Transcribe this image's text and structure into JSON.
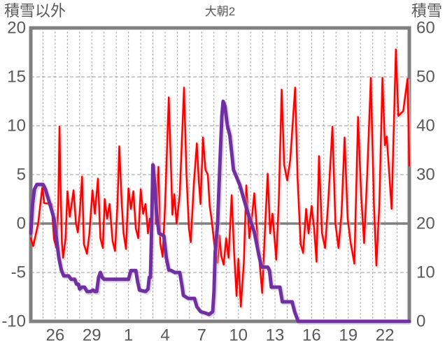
{
  "header": {
    "left_axis_title": "積雪以外",
    "chart_title": "大朝2",
    "right_axis_title": "積雪"
  },
  "chart_data": {
    "type": "line",
    "title": "大朝2",
    "left_axis": {
      "title": "積雪以外",
      "ticks": [
        20,
        15,
        10,
        5,
        0,
        -5,
        -10
      ],
      "range": [
        -10,
        20
      ]
    },
    "right_axis": {
      "title": "積雪",
      "ticks": [
        60,
        50,
        40,
        30,
        20,
        10,
        0
      ],
      "range": [
        0,
        60
      ]
    },
    "x_axis": {
      "tick_labels": [
        "26",
        "29",
        "1",
        "4",
        "7",
        "10",
        "13",
        "16",
        "19",
        "22"
      ],
      "tick_positions_days": [
        2,
        5,
        8,
        11,
        14,
        17,
        20,
        23,
        26,
        29
      ],
      "range_days": [
        0,
        31
      ],
      "gridline_every_day": true
    },
    "zero_line_left_value": 0,
    "grid": true,
    "legend": "none",
    "colors": {
      "temperature_line": "#FF0000",
      "temperature_shadow": "#ffb0b0",
      "snow_line": "#7030A0",
      "snow_shadow": "#c9aee0",
      "frame": "#808080",
      "gridline": "#9e9e9e",
      "text": "#595959",
      "background": "#ffffff"
    },
    "series": [
      {
        "name": "積雪以外",
        "axis": "left",
        "color": "#FF0000",
        "width": 2.5,
        "points": [
          [
            0.0,
            -1.5
          ],
          [
            0.2,
            -2.3
          ],
          [
            0.6,
            0.0
          ],
          [
            0.95,
            3.8
          ],
          [
            1.1,
            2.1
          ],
          [
            1.7,
            2.0
          ],
          [
            1.9,
            -1.6
          ],
          [
            2.1,
            -2.5
          ],
          [
            2.25,
            2.0
          ],
          [
            2.35,
            9.9
          ],
          [
            2.45,
            3.0
          ],
          [
            2.55,
            -2.0
          ],
          [
            2.65,
            -3.5
          ],
          [
            2.85,
            -1.5
          ],
          [
            3.0,
            3.3
          ],
          [
            3.2,
            0.7
          ],
          [
            3.5,
            3.4
          ],
          [
            3.7,
            0.0
          ],
          [
            3.85,
            -0.9
          ],
          [
            4.0,
            1.0
          ],
          [
            4.2,
            4.8
          ],
          [
            4.35,
            -2.1
          ],
          [
            4.6,
            -3.1
          ],
          [
            4.8,
            -1.0
          ],
          [
            5.05,
            3.4
          ],
          [
            5.25,
            1.0
          ],
          [
            5.5,
            4.6
          ],
          [
            5.7,
            -1.5
          ],
          [
            5.9,
            -2.5
          ],
          [
            6.05,
            2.5
          ],
          [
            6.25,
            0.5
          ],
          [
            6.45,
            2.0
          ],
          [
            6.7,
            -1.8
          ],
          [
            6.9,
            -2.8
          ],
          [
            7.1,
            2.0
          ],
          [
            7.25,
            7.9
          ],
          [
            7.45,
            2.0
          ],
          [
            7.6,
            -1.0
          ],
          [
            7.8,
            -2.6
          ],
          [
            8.0,
            3.6
          ],
          [
            8.2,
            1.5
          ],
          [
            8.4,
            3.3
          ],
          [
            8.6,
            -0.5
          ],
          [
            8.8,
            -1.5
          ],
          [
            9.0,
            3.5
          ],
          [
            9.2,
            1.0
          ],
          [
            9.4,
            2.0
          ],
          [
            9.6,
            -1.0
          ],
          [
            9.75,
            0.5
          ],
          [
            9.9,
            -0.5
          ],
          [
            10.1,
            5.9
          ],
          [
            10.25,
            0.0
          ],
          [
            10.45,
            5.8
          ],
          [
            10.6,
            -2.0
          ],
          [
            10.8,
            -3.4
          ],
          [
            11.0,
            2.0
          ],
          [
            11.3,
            12.9
          ],
          [
            11.5,
            5.0
          ],
          [
            11.6,
            0.9
          ],
          [
            11.75,
            3.0
          ],
          [
            11.95,
            0.0
          ],
          [
            12.2,
            3.0
          ],
          [
            12.55,
            13.9
          ],
          [
            12.75,
            5.0
          ],
          [
            12.95,
            -0.5
          ],
          [
            13.1,
            -1.9
          ],
          [
            13.35,
            4.0
          ],
          [
            13.6,
            8.2
          ],
          [
            13.75,
            4.5
          ],
          [
            13.9,
            2.0
          ],
          [
            14.1,
            8.8
          ],
          [
            14.3,
            5.5
          ],
          [
            14.5,
            5.0
          ],
          [
            14.65,
            1.8
          ],
          [
            14.8,
            0.5
          ],
          [
            14.95,
            -1.2
          ],
          [
            15.1,
            -2.9
          ],
          [
            15.3,
            -4.0
          ],
          [
            15.45,
            -1.2
          ],
          [
            15.6,
            -3.3
          ],
          [
            15.8,
            -4.2
          ],
          [
            16.0,
            -1.5
          ],
          [
            16.2,
            -3.5
          ],
          [
            16.45,
            2.9
          ],
          [
            16.65,
            -3.0
          ],
          [
            16.85,
            -7.4
          ],
          [
            17.0,
            -3.6
          ],
          [
            17.2,
            -8.5
          ],
          [
            17.45,
            -4.0
          ],
          [
            17.65,
            3.9
          ],
          [
            17.9,
            -1.5
          ],
          [
            18.1,
            0.5
          ],
          [
            18.3,
            3.1
          ],
          [
            18.6,
            -2.0
          ],
          [
            18.95,
            -7.1
          ],
          [
            19.2,
            0.0
          ],
          [
            19.4,
            5.1
          ],
          [
            19.6,
            -1.0
          ],
          [
            19.8,
            1.0
          ],
          [
            20.1,
            -3.7
          ],
          [
            20.3,
            2.0
          ],
          [
            20.55,
            13.7
          ],
          [
            20.75,
            6.0
          ],
          [
            21.0,
            4.4
          ],
          [
            21.25,
            6.5
          ],
          [
            21.65,
            13.9
          ],
          [
            21.85,
            4.6
          ],
          [
            22.1,
            -2.1
          ],
          [
            22.3,
            -3.0
          ],
          [
            22.55,
            1.5
          ],
          [
            22.75,
            -1.0
          ],
          [
            23.0,
            1.8
          ],
          [
            23.2,
            -0.5
          ],
          [
            23.4,
            -3.9
          ],
          [
            23.6,
            6.9
          ],
          [
            23.85,
            -1.0
          ],
          [
            24.1,
            -2.5
          ],
          [
            24.35,
            2.0
          ],
          [
            24.7,
            9.9
          ],
          [
            24.95,
            0.0
          ],
          [
            25.2,
            -2.5
          ],
          [
            25.45,
            1.0
          ],
          [
            25.7,
            8.8
          ],
          [
            25.95,
            0.5
          ],
          [
            26.2,
            -2.0
          ],
          [
            26.5,
            -4.1
          ],
          [
            26.8,
            10.9
          ],
          [
            27.05,
            3.0
          ],
          [
            27.3,
            -2.0
          ],
          [
            27.55,
            5.0
          ],
          [
            27.85,
            14.9
          ],
          [
            28.1,
            2.0
          ],
          [
            28.3,
            -4.3
          ],
          [
            28.55,
            2.0
          ],
          [
            28.8,
            14.9
          ],
          [
            29.0,
            8.0
          ],
          [
            29.15,
            8.9
          ],
          [
            29.55,
            1.5
          ],
          [
            29.9,
            17.8
          ],
          [
            30.1,
            11.0
          ],
          [
            30.5,
            11.5
          ],
          [
            30.85,
            14.8
          ],
          [
            31.0,
            5.9
          ]
        ]
      },
      {
        "name": "積雪",
        "axis": "right",
        "color": "#7030A0",
        "width": 5,
        "points": [
          [
            0.0,
            18
          ],
          [
            0.15,
            24
          ],
          [
            0.3,
            27
          ],
          [
            0.5,
            28
          ],
          [
            1.0,
            28
          ],
          [
            1.2,
            27
          ],
          [
            1.5,
            24.5
          ],
          [
            1.9,
            21
          ],
          [
            2.1,
            17
          ],
          [
            2.3,
            13
          ],
          [
            2.5,
            10.5
          ],
          [
            2.7,
            9.3
          ],
          [
            3.1,
            9.3
          ],
          [
            3.3,
            8.6
          ],
          [
            3.6,
            8.6
          ],
          [
            3.75,
            7.6
          ],
          [
            3.9,
            7.6
          ],
          [
            4.0,
            6.6
          ],
          [
            4.2,
            7.0
          ],
          [
            4.4,
            7.0
          ],
          [
            4.6,
            6.1
          ],
          [
            4.9,
            6.1
          ],
          [
            5.1,
            6.4
          ],
          [
            5.25,
            6.1
          ],
          [
            5.4,
            6.1
          ],
          [
            5.55,
            9.0
          ],
          [
            5.7,
            10.0
          ],
          [
            5.85,
            9.0
          ],
          [
            6.0,
            8.6
          ],
          [
            7.0,
            8.6
          ],
          [
            8.0,
            8.6
          ],
          [
            8.2,
            10.4
          ],
          [
            8.6,
            10.4
          ],
          [
            8.75,
            8.1
          ],
          [
            8.9,
            6.4
          ],
          [
            9.4,
            6.1
          ],
          [
            9.6,
            6.6
          ],
          [
            9.7,
            9.0
          ],
          [
            9.8,
            9.0
          ],
          [
            9.85,
            14.0
          ],
          [
            10.0,
            32.0
          ],
          [
            10.15,
            28.0
          ],
          [
            10.3,
            22.0
          ],
          [
            10.5,
            18.0
          ],
          [
            10.9,
            17.5
          ],
          [
            11.1,
            13.0
          ],
          [
            11.3,
            10.5
          ],
          [
            11.5,
            10.4
          ],
          [
            11.8,
            10.0
          ],
          [
            12.2,
            10.0
          ],
          [
            12.4,
            7.0
          ],
          [
            12.5,
            5.3
          ],
          [
            12.9,
            4.7
          ],
          [
            13.4,
            4.7
          ],
          [
            13.6,
            3.0
          ],
          [
            13.9,
            2.0
          ],
          [
            14.3,
            1.7
          ],
          [
            14.6,
            1.4
          ],
          [
            14.9,
            2.0
          ],
          [
            15.0,
            6.0
          ],
          [
            15.1,
            14.0
          ],
          [
            15.3,
            20.0
          ],
          [
            15.5,
            33.0
          ],
          [
            15.65,
            42.0
          ],
          [
            15.75,
            45.0
          ],
          [
            15.9,
            44.0
          ],
          [
            16.1,
            40.0
          ],
          [
            16.3,
            38.0
          ],
          [
            16.6,
            31.0
          ],
          [
            17.1,
            28.0
          ],
          [
            17.8,
            22.0
          ],
          [
            18.3,
            18.3
          ],
          [
            18.7,
            13.3
          ],
          [
            18.9,
            11.1
          ],
          [
            19.4,
            11.1
          ],
          [
            19.55,
            10.4
          ],
          [
            19.7,
            7.0
          ],
          [
            20.4,
            7.0
          ],
          [
            20.6,
            4.0
          ],
          [
            21.4,
            4.0
          ],
          [
            21.6,
            2.0
          ],
          [
            21.9,
            0.0
          ],
          [
            31.0,
            0.0
          ]
        ]
      }
    ]
  }
}
